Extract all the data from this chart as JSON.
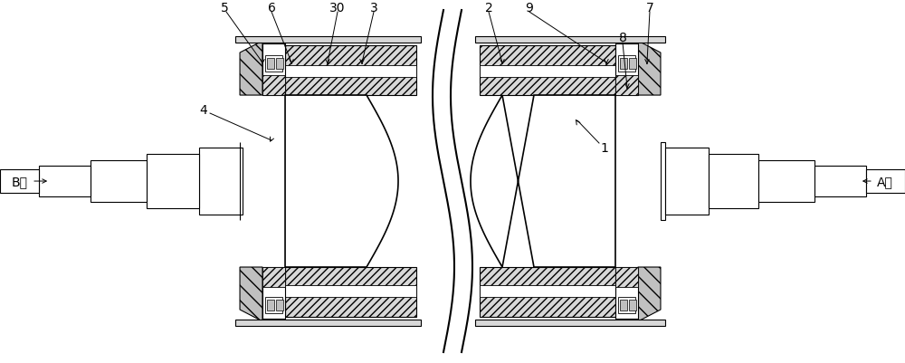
{
  "bg_color": "#ffffff",
  "line_color": "#000000",
  "gray_fill": "#c8c8c8",
  "light_gray": "#e0e0e0",
  "white_fill": "#ffffff",
  "figsize": [
    10.0,
    4.02
  ],
  "dpi": 100
}
